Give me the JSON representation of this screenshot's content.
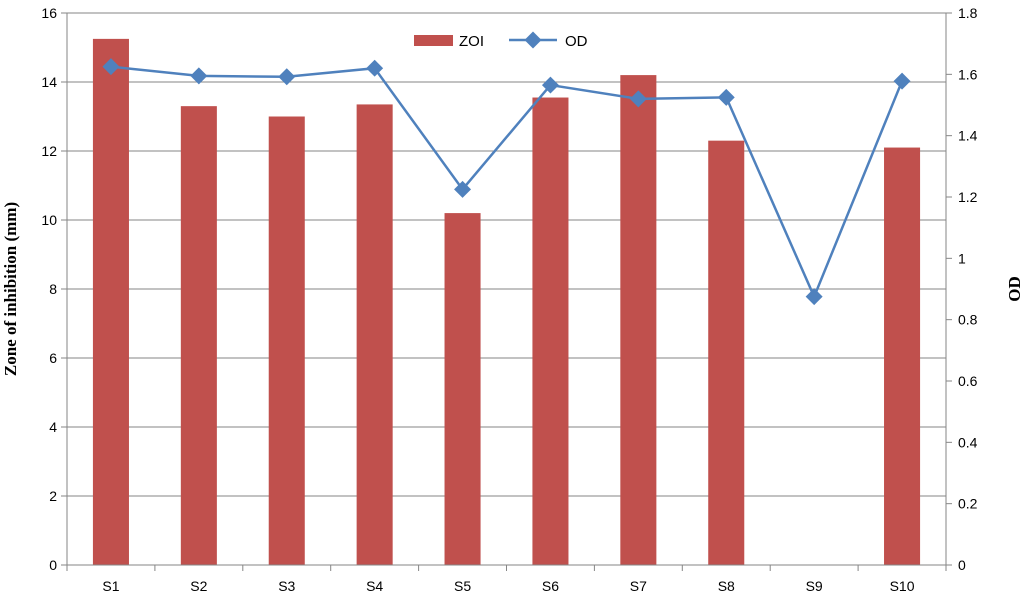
{
  "chart_data": {
    "type": "bar",
    "categories": [
      "S1",
      "S2",
      "S3",
      "S4",
      "S5",
      "S6",
      "S7",
      "S8",
      "S9",
      "S10"
    ],
    "series": [
      {
        "name": "ZOI",
        "type": "bar",
        "axis": "left",
        "color": "#c0504d",
        "values": [
          15.25,
          13.3,
          13.0,
          13.35,
          10.2,
          13.55,
          14.2,
          12.3,
          0,
          12.1
        ]
      },
      {
        "name": "OD",
        "type": "line",
        "axis": "right",
        "color": "#4f81bd",
        "values": [
          1.625,
          1.595,
          1.592,
          1.62,
          1.225,
          1.565,
          1.52,
          1.525,
          0.875,
          1.578
        ]
      }
    ],
    "title": "",
    "xlabel": "",
    "ylabel": "Zone of inhibition (mm)",
    "y2label": "OD",
    "ylim": [
      0,
      16
    ],
    "y2lim": [
      0,
      1.8
    ],
    "yticks": [
      "0",
      "2",
      "4",
      "6",
      "8",
      "10",
      "12",
      "14",
      "16"
    ],
    "y2ticks": [
      "0",
      "0.2",
      "0.4",
      "0.6",
      "0.8",
      "1",
      "1.2",
      "1.4",
      "1.6",
      "1.8"
    ],
    "grid": true,
    "legend": "top-center"
  }
}
